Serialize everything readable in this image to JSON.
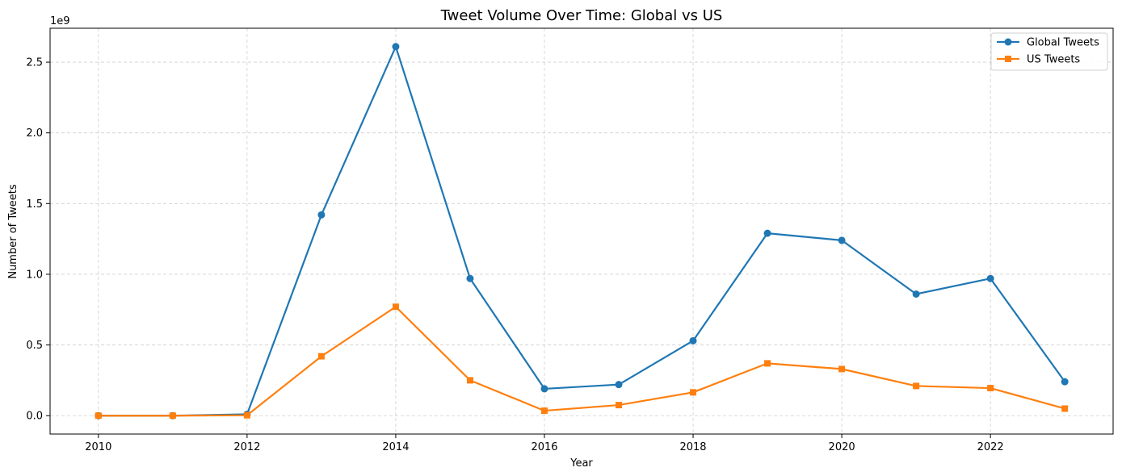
{
  "chart_data": {
    "type": "line",
    "title": "Tweet Volume Over Time: Global vs US",
    "xlabel": "Year",
    "ylabel": "Number of Tweets",
    "offset_label": "1e9",
    "x": [
      2010,
      2011,
      2012,
      2013,
      2014,
      2015,
      2016,
      2017,
      2018,
      2019,
      2020,
      2021,
      2022,
      2023
    ],
    "xlim": [
      2009.35,
      2023.65
    ],
    "ylim": [
      -0.13,
      2.74
    ],
    "y_scale_note": "values in units of 1e9 tweets",
    "x_ticks": [
      2010,
      2012,
      2014,
      2016,
      2018,
      2020,
      2022
    ],
    "x_tick_labels": [
      "2010",
      "2012",
      "2014",
      "2016",
      "2018",
      "2020",
      "2022"
    ],
    "y_ticks": [
      0.0,
      0.5,
      1.0,
      1.5,
      2.0,
      2.5
    ],
    "y_tick_labels": [
      "0.0",
      "0.5",
      "1.0",
      "1.5",
      "2.0",
      "2.5"
    ],
    "grid": true,
    "legend_position": "top-right",
    "series": [
      {
        "name": "Global Tweets",
        "color": "#1f77b4",
        "marker": "circle",
        "values": [
          0.0,
          0.0,
          0.01,
          1.42,
          2.61,
          0.97,
          0.19,
          0.22,
          0.53,
          1.29,
          1.24,
          0.86,
          0.97,
          0.24
        ]
      },
      {
        "name": "US Tweets",
        "color": "#ff7f0e",
        "marker": "square",
        "values": [
          0.0,
          0.0,
          0.003,
          0.42,
          0.77,
          0.25,
          0.035,
          0.075,
          0.165,
          0.37,
          0.33,
          0.21,
          0.195,
          0.05
        ]
      }
    ]
  }
}
